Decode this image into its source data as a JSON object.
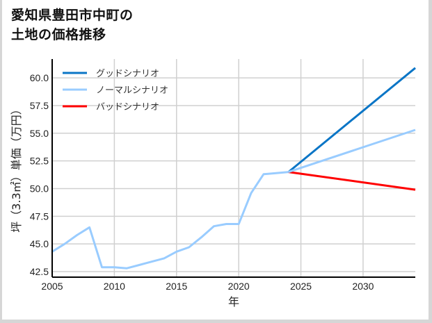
{
  "title": {
    "line1": "愛知県豊田市中町の",
    "line2": "土地の価格推移"
  },
  "colors": {
    "good": "#0a75c6",
    "normal": "#99ccff",
    "bad": "#ff0000",
    "grid": "#d0d0d0",
    "axis": "#000000"
  },
  "legend": [
    {
      "label": "グッドシナリオ",
      "color": "#0a75c6"
    },
    {
      "label": "ノーマルシナリオ",
      "color": "#99ccff"
    },
    {
      "label": "バッドシナリオ",
      "color": "#ff0000"
    }
  ],
  "axes": {
    "xlabel": "年",
    "ylabel": "坪（3.3㎡）単価（万円）",
    "xticks": [
      "2005",
      "2010",
      "2015",
      "2020",
      "2025",
      "2030"
    ],
    "yticks": [
      "42.5",
      "45.0",
      "47.5",
      "50.0",
      "52.5",
      "55.0",
      "57.5",
      "60.0"
    ]
  },
  "chart_data": {
    "type": "line",
    "title": "愛知県豊田市中町の土地の価格推移",
    "xlabel": "年",
    "ylabel": "坪（3.3㎡）単価（万円）",
    "xlim": [
      2005,
      2034.2
    ],
    "ylim": [
      42.0,
      61.7
    ],
    "grid": true,
    "legend_position": "upper left",
    "series": [
      {
        "name": "ノーマルシナリオ (実績)",
        "color": "#99ccff",
        "x": [
          2005,
          2006,
          2007,
          2008,
          2009,
          2010,
          2011,
          2012,
          2013,
          2014,
          2015,
          2016,
          2017,
          2018,
          2019,
          2020,
          2021,
          2022,
          2023,
          2024
        ],
        "values": [
          44.3,
          45.0,
          45.8,
          46.5,
          42.9,
          42.9,
          42.8,
          43.1,
          43.4,
          43.7,
          44.3,
          44.7,
          45.6,
          46.6,
          46.8,
          46.8,
          49.6,
          51.3,
          51.4,
          51.5
        ]
      },
      {
        "name": "グッドシナリオ",
        "color": "#0a75c6",
        "x": [
          2024,
          2034.2
        ],
        "values": [
          51.5,
          60.9
        ]
      },
      {
        "name": "ノーマルシナリオ",
        "color": "#99ccff",
        "x": [
          2024,
          2034.2
        ],
        "values": [
          51.5,
          55.3
        ]
      },
      {
        "name": "バッドシナリオ",
        "color": "#ff0000",
        "x": [
          2024,
          2034.2
        ],
        "values": [
          51.5,
          49.9
        ]
      }
    ]
  }
}
